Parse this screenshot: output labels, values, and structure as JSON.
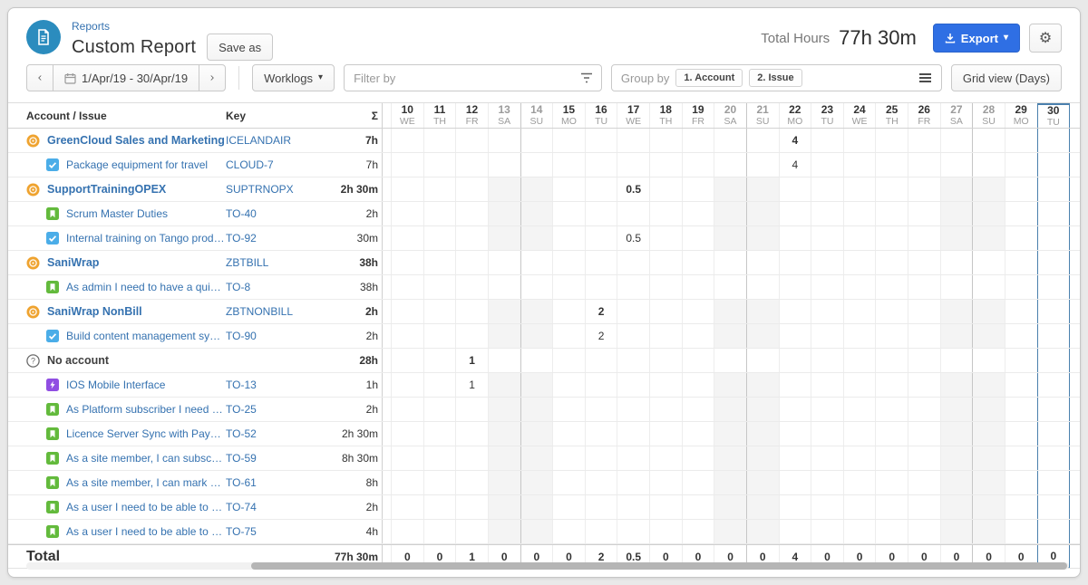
{
  "header": {
    "breadcrumb": "Reports",
    "title": "Custom Report",
    "save_as_label": "Save as",
    "total_hours_label": "Total Hours",
    "total_hours_value": "77h 30m",
    "export_label": "Export",
    "colors": {
      "export_blue": "#2f6fe4",
      "report_icon_circle": "#2b8cbe",
      "link_blue": "#3572b0",
      "selected_column_border": "#4a80ad",
      "weekend_shade": "#f4f4f4"
    }
  },
  "toolbar": {
    "date_range": "1/Apr/19 - 30/Apr/19",
    "view_dropdown": "Worklogs",
    "filter_placeholder": "Filter by",
    "group_by_label": "Group by",
    "group_chips": [
      "1. Account",
      "2. Issue"
    ],
    "grid_view_label": "Grid view (Days)"
  },
  "table": {
    "columns": {
      "account_issue": "Account / Issue",
      "key": "Key",
      "sum": "Σ"
    },
    "days": [
      {
        "num": "10",
        "dow": "WE",
        "weekend": false,
        "week_start": false,
        "selected": false
      },
      {
        "num": "11",
        "dow": "TH",
        "weekend": false,
        "week_start": false,
        "selected": false
      },
      {
        "num": "12",
        "dow": "FR",
        "weekend": false,
        "week_start": false,
        "selected": false
      },
      {
        "num": "13",
        "dow": "SA",
        "weekend": true,
        "week_start": false,
        "selected": false
      },
      {
        "num": "14",
        "dow": "SU",
        "weekend": true,
        "week_start": true,
        "selected": false
      },
      {
        "num": "15",
        "dow": "MO",
        "weekend": false,
        "week_start": false,
        "selected": false
      },
      {
        "num": "16",
        "dow": "TU",
        "weekend": false,
        "week_start": false,
        "selected": false
      },
      {
        "num": "17",
        "dow": "WE",
        "weekend": false,
        "week_start": false,
        "selected": false
      },
      {
        "num": "18",
        "dow": "TH",
        "weekend": false,
        "week_start": false,
        "selected": false
      },
      {
        "num": "19",
        "dow": "FR",
        "weekend": false,
        "week_start": false,
        "selected": false
      },
      {
        "num": "20",
        "dow": "SA",
        "weekend": true,
        "week_start": false,
        "selected": false
      },
      {
        "num": "21",
        "dow": "SU",
        "weekend": true,
        "week_start": true,
        "selected": false
      },
      {
        "num": "22",
        "dow": "MO",
        "weekend": false,
        "week_start": false,
        "selected": false
      },
      {
        "num": "23",
        "dow": "TU",
        "weekend": false,
        "week_start": false,
        "selected": false
      },
      {
        "num": "24",
        "dow": "WE",
        "weekend": false,
        "week_start": false,
        "selected": false
      },
      {
        "num": "25",
        "dow": "TH",
        "weekend": false,
        "week_start": false,
        "selected": false
      },
      {
        "num": "26",
        "dow": "FR",
        "weekend": false,
        "week_start": false,
        "selected": false
      },
      {
        "num": "27",
        "dow": "SA",
        "weekend": true,
        "week_start": false,
        "selected": false
      },
      {
        "num": "28",
        "dow": "SU",
        "weekend": true,
        "week_start": true,
        "selected": false
      },
      {
        "num": "29",
        "dow": "MO",
        "weekend": false,
        "week_start": false,
        "selected": false
      },
      {
        "num": "30",
        "dow": "TU",
        "weekend": false,
        "week_start": false,
        "selected": true
      }
    ],
    "rows": [
      {
        "type": "account",
        "icon": "account",
        "name": "GreenCloud Sales and Marketing",
        "key": "ICELANDAIR",
        "sum": "7h",
        "shade": false,
        "values": {
          "22": "4"
        }
      },
      {
        "type": "issue",
        "icon": "task",
        "name": "Package equipment for travel",
        "key": "CLOUD-7",
        "sum": "7h",
        "shade": false,
        "values": {
          "22": "4"
        }
      },
      {
        "type": "account",
        "icon": "account",
        "name": "SupportTrainingOPEX",
        "key": "SUPTRNOPX",
        "sum": "2h 30m",
        "shade": true,
        "values": {
          "17": "0.5"
        }
      },
      {
        "type": "issue",
        "icon": "story",
        "name": "Scrum Master Duties",
        "key": "TO-40",
        "sum": "2h",
        "shade": true,
        "values": {}
      },
      {
        "type": "issue",
        "icon": "task",
        "name": "Internal training on Tango product",
        "key": "TO-92",
        "sum": "30m",
        "shade": true,
        "values": {
          "17": "0.5"
        }
      },
      {
        "type": "account",
        "icon": "account",
        "name": "SaniWrap",
        "key": "ZBTBILL",
        "sum": "38h",
        "shade": false,
        "values": {}
      },
      {
        "type": "issue",
        "icon": "story",
        "name": "As admin I need to have a quick way to reb...",
        "key": "TO-8",
        "sum": "38h",
        "shade": false,
        "values": {}
      },
      {
        "type": "account",
        "icon": "account",
        "name": "SaniWrap NonBill",
        "key": "ZBTNONBILL",
        "sum": "2h",
        "shade": true,
        "values": {
          "16": "2"
        }
      },
      {
        "type": "issue",
        "icon": "task",
        "name": "Build content management system",
        "key": "TO-90",
        "sum": "2h",
        "shade": true,
        "values": {
          "16": "2"
        }
      },
      {
        "type": "account",
        "icon": "question",
        "name": "No account",
        "key": "",
        "sum": "28h",
        "shade": false,
        "values": {
          "12": "1"
        }
      },
      {
        "type": "issue",
        "icon": "bolt",
        "name": "IOS Mobile Interface",
        "key": "TO-13",
        "sum": "1h",
        "shade": true,
        "values": {
          "12": "1"
        }
      },
      {
        "type": "issue",
        "icon": "story",
        "name": "As Platform subscriber I need to upgrade ...",
        "key": "TO-25",
        "sum": "2h",
        "shade": true,
        "values": {}
      },
      {
        "type": "issue",
        "icon": "story",
        "name": "Licence Server Sync with Payment Modules",
        "key": "TO-52",
        "sum": "2h 30m",
        "shade": true,
        "values": {}
      },
      {
        "type": "issue",
        "icon": "story",
        "name": "As a site member, I can subscribe to an R...",
        "key": "TO-59",
        "sum": "8h 30m",
        "shade": true,
        "values": {}
      },
      {
        "type": "issue",
        "icon": "story",
        "name": "As a site member, I can mark my profile as...",
        "key": "TO-61",
        "sum": "8h",
        "shade": true,
        "values": {}
      },
      {
        "type": "issue",
        "icon": "story",
        "name": "As a user I need to be able to update & vie...",
        "key": "TO-74",
        "sum": "2h",
        "shade": true,
        "values": {}
      },
      {
        "type": "issue",
        "icon": "story",
        "name": "As a user I need to be able to contact supp...",
        "key": "TO-75",
        "sum": "4h",
        "shade": true,
        "values": {}
      }
    ],
    "total": {
      "label": "Total",
      "sum": "77h 30m",
      "values": [
        "0",
        "0",
        "1",
        "0",
        "0",
        "0",
        "2",
        "0.5",
        "0",
        "0",
        "0",
        "0",
        "4",
        "0",
        "0",
        "0",
        "0",
        "0",
        "0",
        "0",
        "0"
      ]
    }
  }
}
